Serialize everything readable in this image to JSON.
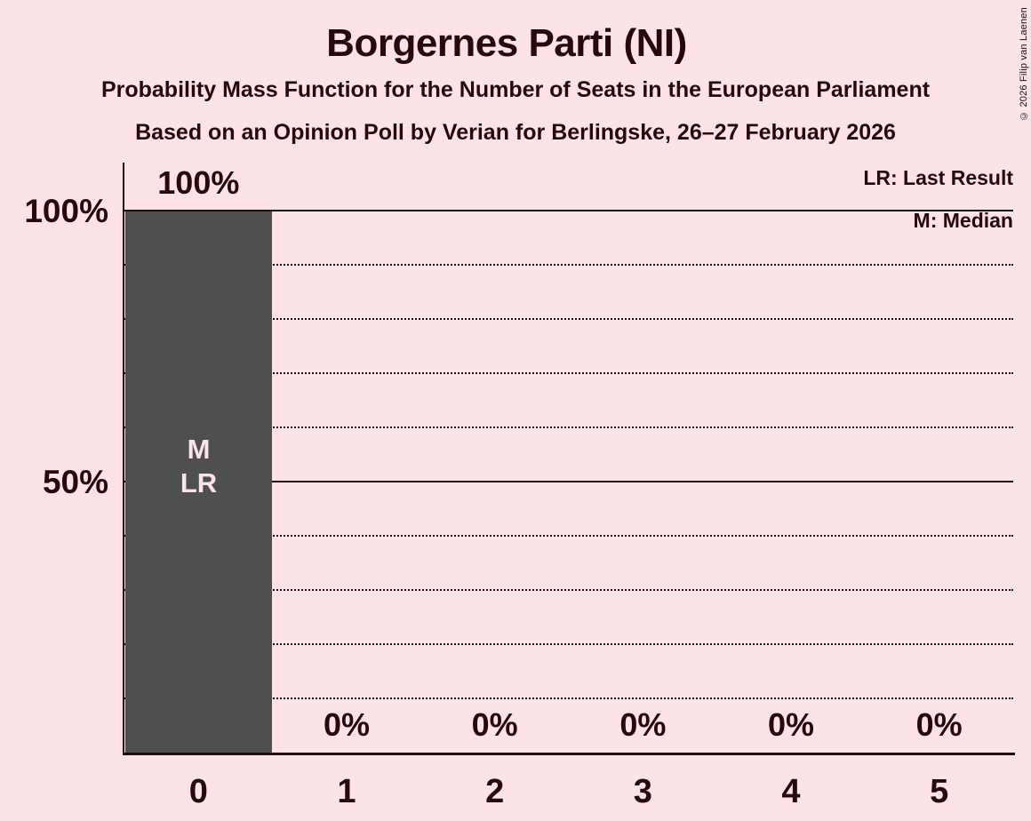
{
  "title": "Borgernes Parti (NI)",
  "subtitle_line1": "Probability Mass Function for the Number of Seats in the European Parliament",
  "subtitle_line2": "Based on an Opinion Poll by Verian for Berlingske, 26–27 February 2026",
  "copyright": "© 2026 Filip van Laenen",
  "legend": {
    "last_result": "LR: Last Result",
    "median": "M: Median"
  },
  "y_axis": {
    "label_100": "100%",
    "label_50": "50%"
  },
  "bar_annotation": {
    "line1": "M",
    "line2": "LR"
  },
  "colors": {
    "background": "#fce3e8",
    "text": "#26090f",
    "bar": "#4f4f4f",
    "bar_text": "#fce3e8"
  },
  "chart_data": {
    "type": "bar",
    "title": "Borgernes Parti (NI)",
    "categories": [
      "0",
      "1",
      "2",
      "3",
      "4",
      "5"
    ],
    "values": [
      100,
      0,
      0,
      0,
      0,
      0
    ],
    "bar_labels": [
      "100%",
      "0%",
      "0%",
      "0%",
      "0%",
      "0%"
    ],
    "xlabel": "",
    "ylabel": "",
    "ylim": [
      0,
      100
    ],
    "y_ticks_labeled": [
      50,
      100
    ],
    "grid": "dotted horizontal every 10%, solid at 50% and 100%",
    "legend_position": "top-right",
    "annotations": [
      {
        "category": "0",
        "text": "M",
        "meaning": "Median"
      },
      {
        "category": "0",
        "text": "LR",
        "meaning": "Last Result"
      }
    ]
  }
}
